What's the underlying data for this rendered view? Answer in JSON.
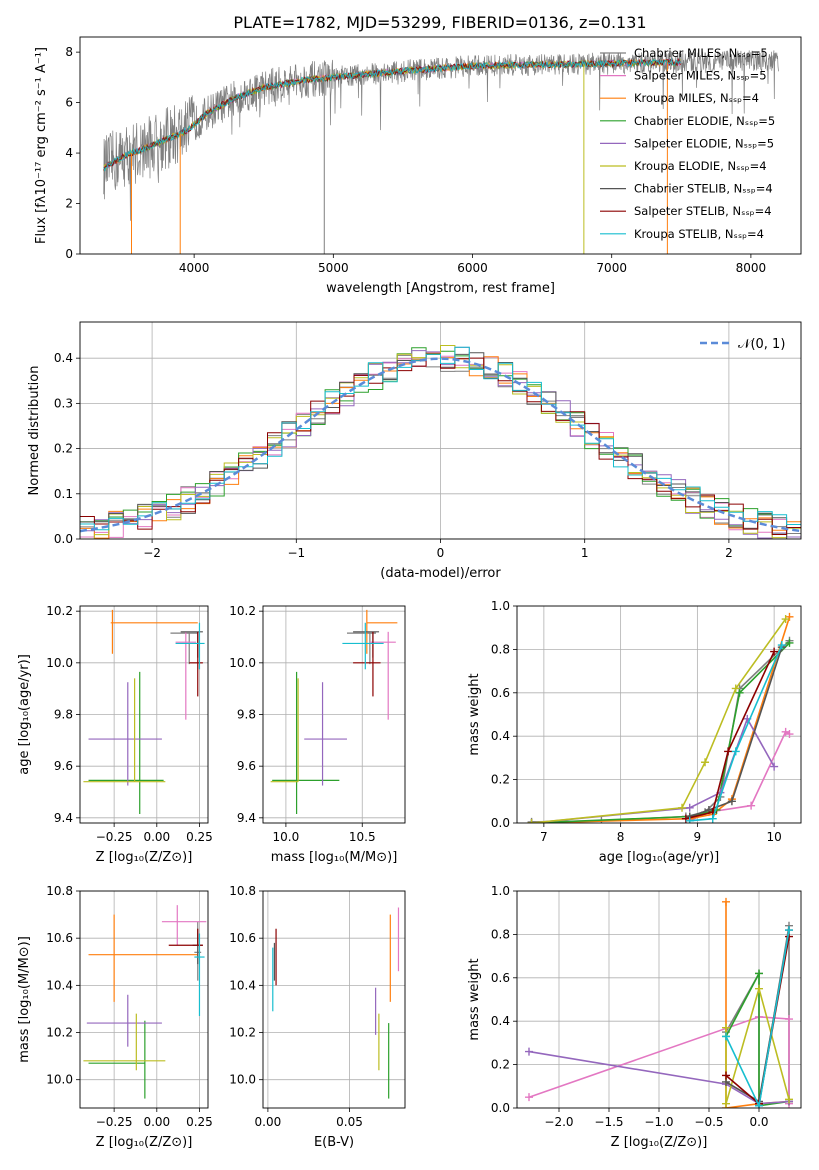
{
  "title": "PLATE=1782, MJD=53299, FIBERID=0136, z=0.131",
  "colors": {
    "chabrier_miles": "#7f7f7f",
    "salpeter_miles": "#e377c2",
    "kroupa_miles": "#ff7f0e",
    "chabrier_elodie": "#2ca02c",
    "salpeter_elodie": "#9467bd",
    "kroupa_elodie": "#bcbd22",
    "chabrier_stelib": "#555555",
    "salpeter_stelib": "#8b0000",
    "kroupa_stelib": "#17becf",
    "gaussian": "#5b8bd8"
  },
  "chart_data": [
    {
      "id": "spectrum",
      "type": "line",
      "xlabel": "wavelength [Angstrom, rest frame]",
      "ylabel": "Flux [fλ10⁻¹⁷ erg cm⁻² s⁻¹ A⁻¹]",
      "xlim": [
        3180,
        8360
      ],
      "ylim": [
        0,
        8.6
      ],
      "xticks": [
        "4000",
        "5000",
        "6000",
        "7000",
        "8000"
      ],
      "yticks": [
        "0",
        "2",
        "4",
        "6",
        "8"
      ],
      "legend_position": "top-right",
      "legend": [
        "Chabrier MILES, Nₛₛₚ=5",
        "Salpeter MILES, Nₛₛₚ=5",
        "Kroupa MILES, Nₛₛₚ=4",
        "Chabrier ELODIE, Nₛₛₚ=5",
        "Salpeter ELODIE, Nₛₛₚ=5",
        "Kroupa ELODIE, Nₛₛₚ=4",
        "Chabrier STELIB, Nₛₛₚ=4",
        "Salpeter STELIB, Nₛₛₚ=4",
        "Kroupa STELIB, Nₛₛₚ=4"
      ],
      "continuum": [
        [
          3350,
          3.4
        ],
        [
          3500,
          3.9
        ],
        [
          3700,
          4.3
        ],
        [
          3950,
          4.9
        ],
        [
          4100,
          5.6
        ],
        [
          4300,
          6.2
        ],
        [
          4500,
          6.6
        ],
        [
          4800,
          6.9
        ],
        [
          5200,
          7.1
        ],
        [
          5600,
          7.3
        ],
        [
          6000,
          7.45
        ],
        [
          6400,
          7.5
        ],
        [
          7000,
          7.55
        ],
        [
          7500,
          7.6
        ],
        [
          8000,
          7.65
        ],
        [
          8200,
          7.65
        ]
      ],
      "data_range": [
        3350,
        8200
      ],
      "model_range": [
        3350,
        7500
      ]
    },
    {
      "id": "residuals",
      "type": "line",
      "xlabel": "(data-model)/error",
      "ylabel": "Normed distribution",
      "xlim": [
        -2.5,
        2.5
      ],
      "ylim": [
        0,
        0.48
      ],
      "xticks": [
        "−2",
        "−1",
        "0",
        "1",
        "2"
      ],
      "yticks": [
        "0.0",
        "0.1",
        "0.2",
        "0.3",
        "0.4"
      ],
      "legend_position": "top-right",
      "legend": [
        "𝒩(0, 1)"
      ],
      "gaussian": {
        "mean": 0,
        "sigma": 1
      }
    },
    {
      "id": "age_vs_Z",
      "type": "scatter",
      "xlabel": "Z [log₁₀(Z/Z⊙)]",
      "ylabel": "age  [log₁₀(age/yr)]",
      "xlim": [
        -0.45,
        0.3
      ],
      "ylim": [
        9.38,
        10.22
      ],
      "xticks": [
        "−0.25",
        "0.00",
        "0.25"
      ],
      "yticks": [
        "9.4",
        "9.6",
        "9.8",
        "10.0",
        "10.2"
      ],
      "points": [
        {
          "x": 0.19,
          "y": 10.115,
          "xerr": [
            0.11,
            0.05
          ],
          "yerr": [
            0.12,
            0.0
          ]
        },
        {
          "x": 0.17,
          "y": 10.08,
          "xerr": [
            0.06,
            0.06
          ],
          "yerr": [
            0.3,
            0.04
          ]
        },
        {
          "x": -0.26,
          "y": 10.155,
          "xerr": [
            0.01,
            0.5
          ],
          "yerr": [
            0.12,
            0.05
          ]
        },
        {
          "x": -0.1,
          "y": 9.545,
          "xerr": [
            0.3,
            0.14
          ],
          "yerr": [
            0.13,
            0.42
          ]
        },
        {
          "x": -0.17,
          "y": 9.705,
          "xerr": [
            0.23,
            0.2
          ],
          "yerr": [
            0.18,
            0.22
          ]
        },
        {
          "x": -0.13,
          "y": 9.54,
          "xerr": [
            0.3,
            0.18
          ],
          "yerr": [
            0.0,
            0.4
          ]
        },
        {
          "x": 0.24,
          "y": 10.12,
          "xerr": [
            0.1,
            0.03
          ],
          "yerr": [
            0.1,
            0.0
          ]
        },
        {
          "x": 0.24,
          "y": 10.0,
          "xerr": [
            0.05,
            0.03
          ],
          "yerr": [
            0.13,
            0.12
          ]
        },
        {
          "x": 0.25,
          "y": 10.075,
          "xerr": [
            0.14,
            0.03
          ],
          "yerr": [
            0.1,
            0.08
          ]
        }
      ]
    },
    {
      "id": "age_vs_mass",
      "type": "scatter",
      "xlabel": "mass [log₁₀(M/M⊙)]",
      "ylabel": "",
      "xlim": [
        9.85,
        10.78
      ],
      "ylim": [
        9.38,
        10.22
      ],
      "xticks": [
        "10.0",
        "10.5"
      ],
      "yticks": [
        "9.4",
        "9.6",
        "9.8",
        "10.0",
        "10.2"
      ],
      "points": [
        {
          "x": 10.55,
          "y": 10.115,
          "xerr": [
            0.15,
            0.04
          ],
          "yerr": [
            0.12,
            0.0
          ]
        },
        {
          "x": 10.67,
          "y": 10.08,
          "xerr": [
            0.12,
            0.05
          ],
          "yerr": [
            0.3,
            0.04
          ]
        },
        {
          "x": 10.53,
          "y": 10.155,
          "xerr": [
            0.0,
            0.2
          ],
          "yerr": [
            0.12,
            0.05
          ]
        },
        {
          "x": 10.07,
          "y": 9.545,
          "xerr": [
            0.16,
            0.28
          ],
          "yerr": [
            0.13,
            0.42
          ]
        },
        {
          "x": 10.24,
          "y": 9.705,
          "xerr": [
            0.12,
            0.16
          ],
          "yerr": [
            0.18,
            0.22
          ]
        },
        {
          "x": 10.08,
          "y": 9.54,
          "xerr": [
            0.18,
            0.0
          ],
          "yerr": [
            0.0,
            0.4
          ]
        },
        {
          "x": 10.57,
          "y": 10.12,
          "xerr": [
            0.13,
            0.04
          ],
          "yerr": [
            0.1,
            0.0
          ]
        },
        {
          "x": 10.57,
          "y": 10.0,
          "xerr": [
            0.13,
            0.05
          ],
          "yerr": [
            0.13,
            0.12
          ]
        },
        {
          "x": 10.52,
          "y": 10.075,
          "xerr": [
            0.15,
            0.12
          ],
          "yerr": [
            0.1,
            0.08
          ]
        }
      ]
    },
    {
      "id": "weight_vs_age",
      "type": "line",
      "xlabel": "age  [log₁₀(age/yr)]",
      "ylabel": "mass weight",
      "xlim": [
        6.65,
        10.35
      ],
      "ylim": [
        0,
        1
      ],
      "xticks": [
        "7",
        "8",
        "9",
        "10"
      ],
      "yticks": [
        "0.0",
        "0.2",
        "0.4",
        "0.6",
        "0.8",
        "1.0"
      ],
      "series": [
        {
          "x": [
            6.84,
            7.75,
            8.85,
            9.1,
            9.3,
            9.55,
            10.2
          ],
          "y": [
            0.005,
            0.01,
            0.03,
            0.05,
            0.12,
            0.62,
            0.84
          ]
        },
        {
          "x": [
            8.9,
            9.15,
            9.7,
            10.15,
            10.2
          ],
          "y": [
            0.01,
            0.05,
            0.08,
            0.42,
            0.41
          ]
        },
        {
          "x": [
            6.84,
            8.9,
            9.2,
            9.45,
            10.2
          ],
          "y": [
            0.0,
            0.02,
            0.04,
            0.11,
            0.95
          ]
        },
        {
          "x": [
            6.84,
            8.9,
            9.25,
            9.55,
            10.2
          ],
          "y": [
            0.0,
            0.03,
            0.06,
            0.6,
            0.83
          ]
        },
        {
          "x": [
            6.84,
            8.9,
            9.3,
            9.65,
            10.0
          ],
          "y": [
            0.0,
            0.07,
            0.14,
            0.48,
            0.26
          ]
        },
        {
          "x": [
            6.84,
            8.8,
            9.1,
            9.5,
            10.15
          ],
          "y": [
            0.0,
            0.07,
            0.28,
            0.62,
            0.94
          ]
        },
        {
          "x": [
            8.9,
            9.15,
            9.45,
            10.1
          ],
          "y": [
            0.03,
            0.06,
            0.1,
            0.81
          ]
        },
        {
          "x": [
            8.85,
            9.2,
            9.4,
            10.0
          ],
          "y": [
            0.02,
            0.05,
            0.33,
            0.79
          ]
        },
        {
          "x": [
            8.9,
            9.2,
            9.5,
            10.1
          ],
          "y": [
            0.01,
            0.02,
            0.33,
            0.82
          ]
        }
      ]
    },
    {
      "id": "mass_vs_Z",
      "type": "scatter",
      "xlabel": "Z [log₁₀(Z/Z⊙)]",
      "ylabel": "mass [log₁₀(M/M⊙)]",
      "xlim": [
        -0.45,
        0.3
      ],
      "ylim": [
        9.88,
        10.8
      ],
      "xticks": [
        "−0.25",
        "0.00",
        "0.25"
      ],
      "yticks": [
        "10.0",
        "10.2",
        "10.4",
        "10.6",
        "10.8"
      ],
      "points": [
        {
          "x": 0.24,
          "y": 10.54,
          "xerr": [
            0.02,
            0.02
          ],
          "yerr": [
            0.12,
            0.13
          ]
        },
        {
          "x": 0.12,
          "y": 10.67,
          "xerr": [
            0.09,
            0.17
          ],
          "yerr": [
            0.1,
            0.07
          ]
        },
        {
          "x": -0.25,
          "y": 10.53,
          "xerr": [
            0.15,
            0.49
          ],
          "yerr": [
            0.2,
            0.17
          ]
        },
        {
          "x": -0.07,
          "y": 10.07,
          "xerr": [
            0.33,
            0.0
          ],
          "yerr": [
            0.15,
            0.18
          ]
        },
        {
          "x": -0.17,
          "y": 10.24,
          "xerr": [
            0.24,
            0.2
          ],
          "yerr": [
            0.1,
            0.12
          ]
        },
        {
          "x": -0.12,
          "y": 10.08,
          "xerr": [
            0.31,
            0.17
          ],
          "yerr": [
            0.04,
            0.2
          ]
        },
        {
          "x": 0.24,
          "y": 10.57,
          "xerr": [
            0.03,
            0.03
          ],
          "yerr": [
            0.08,
            0.07
          ]
        },
        {
          "x": 0.24,
          "y": 10.57,
          "xerr": [
            0.17,
            0.03
          ],
          "yerr": [
            0.0,
            0.07
          ]
        },
        {
          "x": 0.25,
          "y": 10.52,
          "xerr": [
            0.03,
            0.03
          ],
          "yerr": [
            0.25,
            0.1
          ]
        }
      ]
    },
    {
      "id": "mass_vs_ebv",
      "type": "scatter",
      "xlabel": "E(B-V)",
      "ylabel": "",
      "xlim": [
        -0.003,
        0.084
      ],
      "ylim": [
        9.88,
        10.8
      ],
      "xticks": [
        "0.00",
        "0.05"
      ],
      "yticks": [
        "10.0",
        "10.2",
        "10.4",
        "10.6",
        "10.8"
      ],
      "points": [
        {
          "x": 0.0845,
          "y": 10.55,
          "xerr": [
            0,
            0
          ],
          "yerr": [
            0.12,
            0.13
          ]
        },
        {
          "x": 0.08,
          "y": 10.6,
          "xerr": [
            0,
            0
          ],
          "yerr": [
            0.14,
            0.13
          ]
        },
        {
          "x": 0.075,
          "y": 10.53,
          "xerr": [
            0,
            0
          ],
          "yerr": [
            0.2,
            0.17
          ]
        },
        {
          "x": 0.074,
          "y": 10.07,
          "xerr": [
            0,
            0
          ],
          "yerr": [
            0.15,
            0.17
          ]
        },
        {
          "x": 0.066,
          "y": 10.29,
          "xerr": [
            0,
            0
          ],
          "yerr": [
            0.1,
            0.1
          ]
        },
        {
          "x": 0.068,
          "y": 10.08,
          "xerr": [
            0,
            0
          ],
          "yerr": [
            0.04,
            0.2
          ]
        },
        {
          "x": 0.004,
          "y": 10.5,
          "xerr": [
            0,
            0
          ],
          "yerr": [
            0.08,
            0.08
          ]
        },
        {
          "x": 0.005,
          "y": 10.57,
          "xerr": [
            0,
            0
          ],
          "yerr": [
            0.17,
            0.07
          ]
        },
        {
          "x": 0.003,
          "y": 10.44,
          "xerr": [
            0,
            0
          ],
          "yerr": [
            0.15,
            0.12
          ]
        }
      ]
    },
    {
      "id": "weight_vs_Z",
      "type": "line",
      "xlabel": "Z [log₁₀(Z/Z⊙)]",
      "ylabel": "mass weight",
      "xlim": [
        -2.42,
        0.42
      ],
      "ylim": [
        0,
        1
      ],
      "xticks": [
        "−2.0",
        "−1.5",
        "−1.0",
        "−0.5",
        "0.0"
      ],
      "yticks": [
        "0.0",
        "0.2",
        "0.4",
        "0.6",
        "0.8",
        "1.0"
      ],
      "series": [
        {
          "x": [
            -0.33,
            0.0,
            0.0,
            0.3,
            0.3
          ],
          "y": [
            0.35,
            0.62,
            0.01,
            0.84,
            0.03
          ]
        },
        {
          "x": [
            -2.3,
            0.0,
            0.3,
            0.3
          ],
          "y": [
            0.05,
            0.42,
            0.41,
            0.02
          ]
        },
        {
          "x": [
            -0.33,
            -0.33,
            0.0,
            0.3
          ],
          "y": [
            0.95,
            0.0,
            0.02,
            0.03
          ]
        },
        {
          "x": [
            -0.33,
            0.0,
            0.0,
            0.3
          ],
          "y": [
            0.33,
            0.62,
            0.01,
            0.03
          ]
        },
        {
          "x": [
            -2.3,
            -0.33,
            0.0,
            0.3
          ],
          "y": [
            0.26,
            0.11,
            0.02,
            0.03
          ]
        },
        {
          "x": [
            -0.33,
            -0.33,
            0.0,
            0.3
          ],
          "y": [
            0.37,
            0.02,
            0.55,
            0.04
          ]
        },
        {
          "x": [
            -0.33,
            0.0,
            0.3
          ],
          "y": [
            0.12,
            0.03,
            0.82
          ]
        },
        {
          "x": [
            -0.33,
            0.0,
            0.3
          ],
          "y": [
            0.15,
            0.02,
            0.79
          ]
        },
        {
          "x": [
            -0.33,
            0.0,
            0.3
          ],
          "y": [
            0.33,
            0.01,
            0.82
          ]
        }
      ]
    }
  ]
}
